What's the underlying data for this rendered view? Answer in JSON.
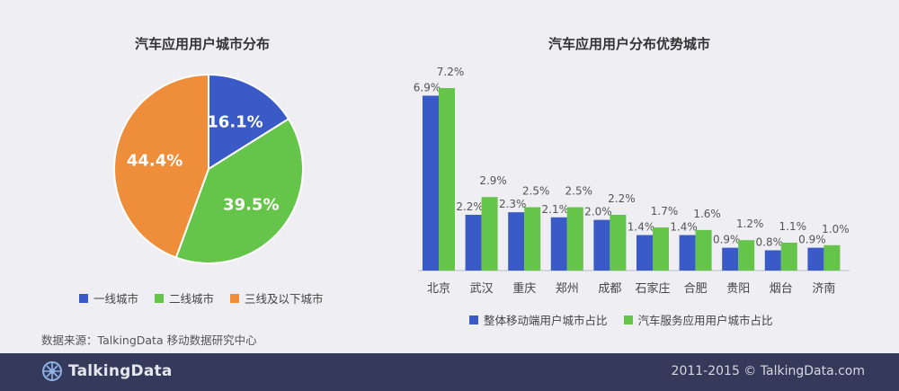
{
  "colors": {
    "blue": "#3a5bc7",
    "green": "#65c44a",
    "orange": "#ee8e3a",
    "footer_bg": "#353a5a"
  },
  "source_text": "数据来源：TalkingData 移动数据研究中心",
  "footer": {
    "brand": "TalkingData",
    "copyright": "2011-2015 © TalkingData.com"
  },
  "chart_data": [
    {
      "type": "pie",
      "title": "汽车应用用户城市分布",
      "categories": [
        "一线城市",
        "二线城市",
        "三线及以下城市"
      ],
      "values": [
        16.1,
        39.5,
        44.4
      ],
      "labels": [
        "16.1%",
        "39.5%",
        "44.4%"
      ],
      "colors": [
        "#3a5bc7",
        "#65c44a",
        "#ee8e3a"
      ],
      "legend": "bottom"
    },
    {
      "type": "bar",
      "title": "汽车应用用户分布优势城市",
      "categories": [
        "北京",
        "武汉",
        "重庆",
        "郑州",
        "成都",
        "石家庄",
        "合肥",
        "贵阳",
        "烟台",
        "济南"
      ],
      "series": [
        {
          "name": "整体移动端用户城市占比",
          "values": [
            6.9,
            2.2,
            2.3,
            2.1,
            2.0,
            1.4,
            1.4,
            0.9,
            0.8,
            0.9
          ],
          "labels": [
            "6.9%",
            "2.2%",
            "2.3%",
            "2.1%",
            "2.0%",
            "1.4%",
            "1.4%",
            "0.9%",
            "0.8%",
            "0.9%"
          ],
          "color": "#3a5bc7"
        },
        {
          "name": "汽车服务应用用户城市占比",
          "values": [
            7.2,
            2.9,
            2.5,
            2.5,
            2.2,
            1.7,
            1.6,
            1.2,
            1.1,
            1.0
          ],
          "labels": [
            "7.2%",
            "2.9%",
            "2.5%",
            "2.5%",
            "2.2%",
            "1.7%",
            "1.6%",
            "1.2%",
            "1.1%",
            "1.0%"
          ],
          "color": "#65c44a"
        }
      ],
      "ylim": [
        0,
        7.2
      ],
      "grid": false,
      "legend": "bottom"
    }
  ]
}
